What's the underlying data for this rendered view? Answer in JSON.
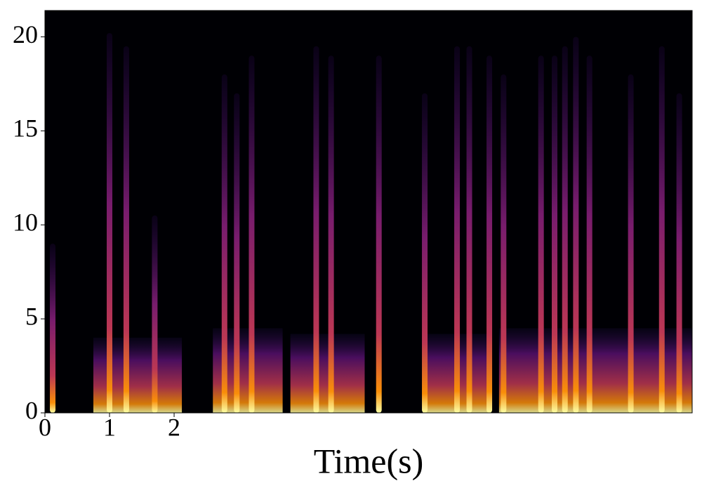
{
  "chart_data": {
    "type": "spectrogram",
    "xlabel": "Time(s)",
    "xlim": [
      0,
      10.02
    ],
    "ylim": [
      0,
      21.4
    ],
    "xticks": [
      0,
      1,
      2
    ],
    "yticks": [
      0,
      5,
      10,
      15,
      20
    ],
    "background": "#000004",
    "streaks": {
      "x": [
        0.12,
        1.0,
        1.26,
        1.7,
        2.78,
        2.97,
        3.2,
        4.2,
        4.43,
        5.17,
        5.88,
        6.38,
        6.57,
        6.88,
        7.1,
        7.68,
        7.89,
        8.05,
        8.22,
        8.43,
        9.07,
        9.55,
        9.82
      ],
      "values": [
        9,
        20.2,
        19.5,
        10.5,
        18,
        17,
        19,
        19.5,
        19,
        19,
        17,
        19.5,
        19.5,
        19,
        18,
        19,
        19,
        19.5,
        20,
        19,
        18,
        19.5,
        17
      ]
    },
    "bands": {
      "start": [
        0.75,
        2.6,
        3.8,
        5.85,
        7.03
      ],
      "end": [
        2.12,
        3.68,
        4.95,
        6.9,
        10.02
      ],
      "values": [
        4,
        4.5,
        4.2,
        4.2,
        4.5
      ]
    }
  }
}
